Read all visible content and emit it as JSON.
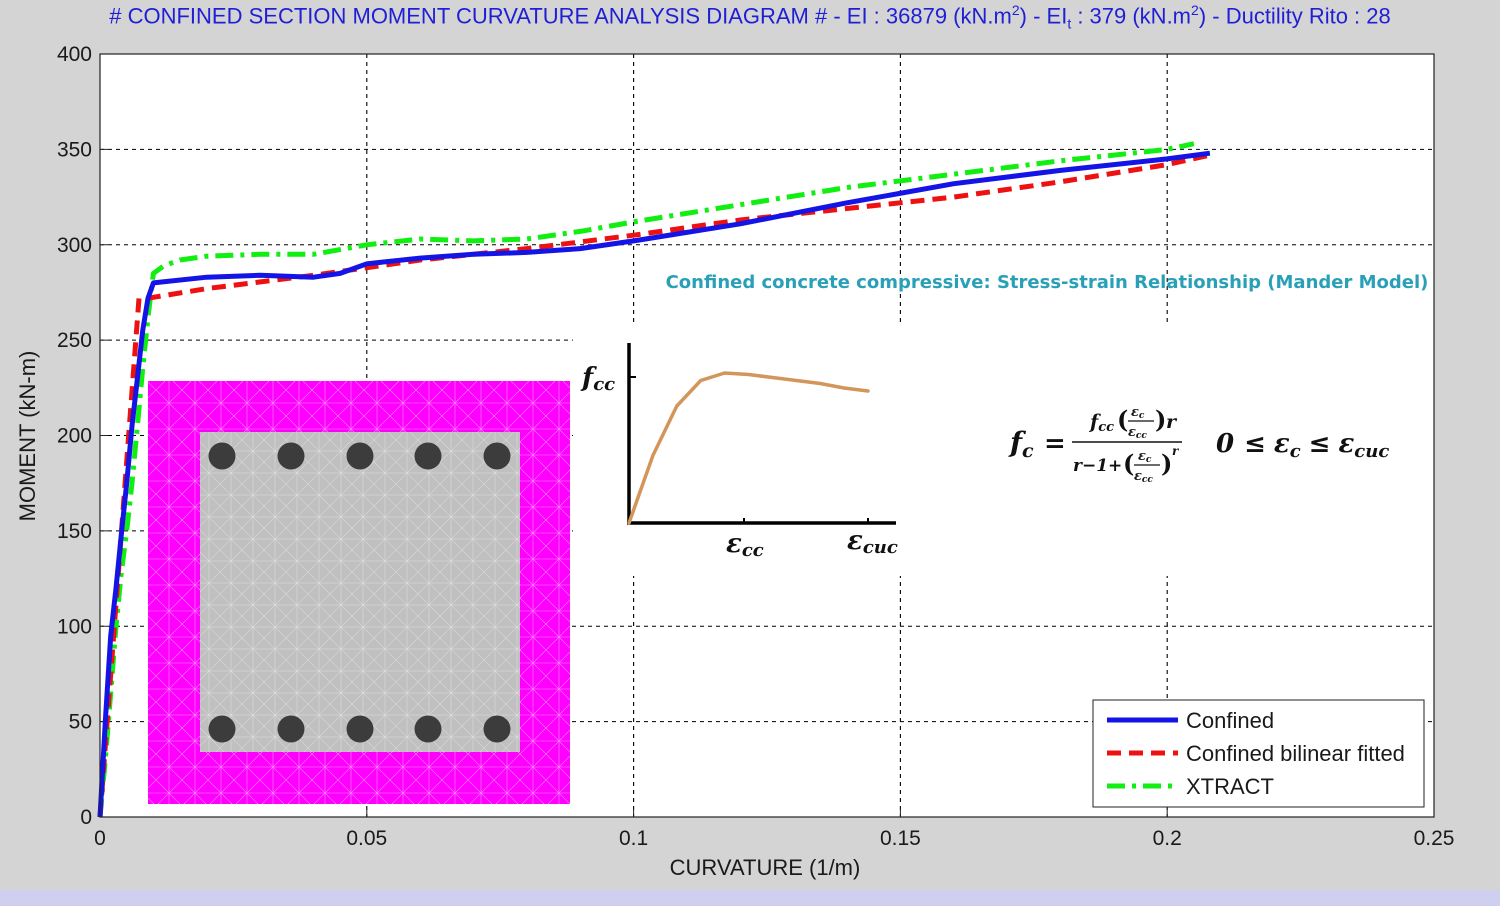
{
  "title": {
    "prefix": "# CONFINED SECTION MOMENT CURVATURE ANALYSIS DIAGRAM # -  EI : 36879 (kN.m",
    "ei_sup": "2",
    "mid1": ")  -  EI",
    "eit_sub": "t",
    "mid2": " : 379 (kN.m",
    "eit_sup": "2",
    "suffix": ")  -  Ductility Rito : 28"
  },
  "chart_data": {
    "type": "line",
    "xlabel": "CURVATURE (1/m)",
    "ylabel": "MOMENT (kN-m)",
    "xlim": [
      0,
      0.25
    ],
    "ylim": [
      0,
      400
    ],
    "xticks": [
      0,
      0.05,
      0.1,
      0.15,
      0.2,
      0.25
    ],
    "xtick_labels": [
      "0",
      "0.05",
      "0.1",
      "0.15",
      "0.2",
      "0.25"
    ],
    "yticks": [
      0,
      50,
      100,
      150,
      200,
      250,
      300,
      350,
      400
    ],
    "ytick_labels": [
      "0",
      "50",
      "100",
      "150",
      "200",
      "250",
      "300",
      "350",
      "400"
    ],
    "grid": true,
    "legend_position": "bottom-right",
    "series": [
      {
        "name": "Confined",
        "color": "#1414e6",
        "style": "solid",
        "x": [
          0,
          0.001,
          0.002,
          0.003,
          0.004,
          0.005,
          0.006,
          0.007,
          0.008,
          0.009,
          0.01,
          0.02,
          0.03,
          0.04,
          0.045,
          0.05,
          0.06,
          0.07,
          0.08,
          0.09,
          0.1,
          0.12,
          0.14,
          0.16,
          0.18,
          0.2,
          0.208
        ],
        "y": [
          0,
          50,
          95,
          120,
          148,
          175,
          205,
          230,
          255,
          272,
          280,
          283,
          284,
          283,
          285,
          290,
          293,
          295,
          296,
          298,
          302,
          311,
          322,
          332,
          339,
          345,
          348
        ]
      },
      {
        "name": "Confined bilinear fitted",
        "color": "#ee1111",
        "style": "dashed",
        "x": [
          0,
          0.0073,
          0.009,
          0.02,
          0.04,
          0.06,
          0.08,
          0.1,
          0.12,
          0.14,
          0.16,
          0.18,
          0.2,
          0.208
        ],
        "y": [
          0,
          272,
          272,
          277,
          284,
          292,
          298,
          305,
          313,
          319,
          325,
          333,
          342,
          347
        ]
      },
      {
        "name": "XTRACT",
        "color": "#11ee11",
        "style": "dashdot",
        "x": [
          0,
          0.001,
          0.002,
          0.003,
          0.004,
          0.005,
          0.006,
          0.007,
          0.008,
          0.009,
          0.01,
          0.012,
          0.015,
          0.02,
          0.03,
          0.04,
          0.05,
          0.06,
          0.07,
          0.08,
          0.09,
          0.1,
          0.12,
          0.14,
          0.16,
          0.18,
          0.2,
          0.205
        ],
        "y": [
          0,
          30,
          65,
          100,
          128,
          150,
          175,
          205,
          235,
          262,
          285,
          289,
          292,
          294,
          295,
          295,
          300,
          303,
          302,
          303,
          307,
          312,
          321,
          330,
          337,
          344,
          350,
          353
        ]
      }
    ]
  },
  "mander": {
    "title": "Confined concrete compressive: Stress-strain Relationship (Mander Model)",
    "fcc_label": "fcc",
    "ecc_label": "εcc",
    "ecuc_label": "εcuc",
    "curve_color": "#d4955a",
    "curve_strain": [
      0,
      0.1,
      0.2,
      0.3,
      0.4,
      0.5,
      0.6,
      0.7,
      0.8,
      0.9,
      1.0
    ],
    "curve_stress": [
      0,
      0.45,
      0.78,
      0.95,
      1.0,
      0.99,
      0.97,
      0.95,
      0.93,
      0.9,
      0.88
    ]
  },
  "formula": {
    "lhs": "f",
    "lhs_sub": "c",
    "equals": "=",
    "num_f": "f",
    "num_f_sub": "cc",
    "num_r": "r",
    "den_prefix": "r−1+",
    "den_exp": "r",
    "eps": "ε",
    "eps_c_sub": "c",
    "eps_cc_sub": "cc",
    "range_zero": "0",
    "le": "≤",
    "range_eps_c_sub": "c",
    "range_eps_cuc_sub": "cuc"
  },
  "section": {
    "cover_color": "#ff00ff",
    "core_color": "#c0c0c0",
    "bar_color": "#3c3c3c",
    "top_bars": 5,
    "bottom_bars": 5
  }
}
